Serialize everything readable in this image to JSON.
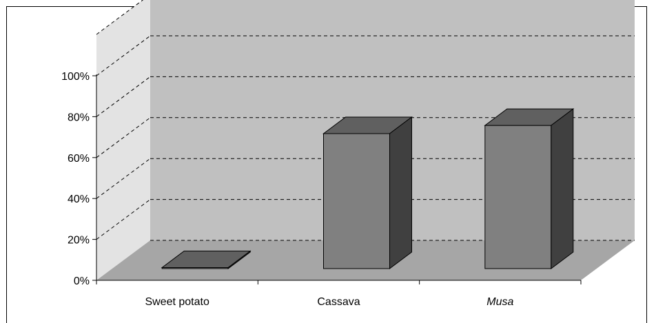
{
  "chart_data": {
    "type": "bar",
    "categories": [
      "Sweet potato",
      "Cassava",
      "Musa"
    ],
    "italic_categories": [
      "Musa"
    ],
    "values": [
      0.5,
      66,
      70
    ],
    "ylim": [
      0,
      100
    ],
    "yticks": [
      0,
      20,
      40,
      60,
      80,
      100
    ],
    "ytick_labels": [
      "0%",
      "20%",
      "40%",
      "60%",
      "80%",
      "100%"
    ],
    "title": "",
    "xlabel": "",
    "ylabel": "",
    "grid": true,
    "grid_style": "dashed",
    "three_d": true,
    "legend": "none"
  },
  "colors": {
    "back_wall": "#c0c0c0",
    "side_wall": "#e3e3e3",
    "floor": "#a6a6a6",
    "bar_front": "#808080",
    "bar_top": "#606060",
    "bar_side": "#404040"
  }
}
